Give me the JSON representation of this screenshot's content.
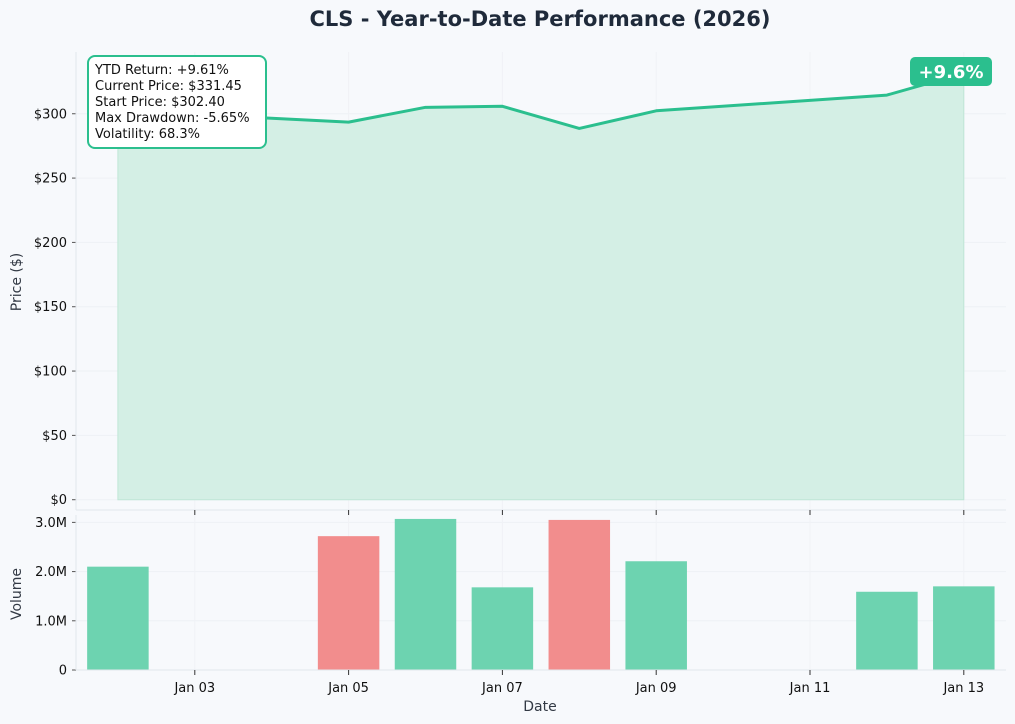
{
  "chart_data": [
    {
      "type": "area",
      "title": "CLS - Year-to-Date Performance (2026)",
      "ylabel": "Price ($)",
      "x": [
        "2026-01-02",
        "2026-01-05",
        "2026-01-06",
        "2026-01-07",
        "2026-01-08",
        "2026-01-09",
        "2026-01-12",
        "2026-01-13"
      ],
      "series": [
        {
          "values": [
            302.4,
            293.5,
            305.0,
            305.8,
            288.6,
            302.3,
            314.5,
            331.45
          ]
        }
      ],
      "ylim": [
        -8,
        348
      ],
      "yticks": [
        0,
        50,
        100,
        150,
        200,
        250,
        300
      ],
      "ytick_labels": [
        "$0",
        "$50",
        "$100",
        "$150",
        "$200",
        "$250",
        "$300"
      ],
      "grid": true,
      "line_color": "#2bbf8e",
      "fill_color": "#d4efe5",
      "stats": [
        "YTD Return: +9.61%",
        "Current Price: $331.45",
        "Start Price: $302.40",
        "Max Drawdown: -5.65%",
        "Volatility: 68.3%"
      ],
      "badge": "+9.6%",
      "badge_color": "#2bbf8e"
    },
    {
      "type": "bar",
      "ylabel": "Volume",
      "xlabel": "Date",
      "x": [
        "2026-01-02",
        "2026-01-05",
        "2026-01-06",
        "2026-01-07",
        "2026-01-08",
        "2026-01-09",
        "2026-01-12",
        "2026-01-13"
      ],
      "values": [
        2.1,
        2.72,
        3.07,
        1.68,
        3.05,
        2.21,
        1.59,
        1.7
      ],
      "direction": [
        "up",
        "down",
        "up",
        "up",
        "down",
        "up",
        "up",
        "up"
      ],
      "unit": "M",
      "ylim": [
        0,
        3.15
      ],
      "yticks": [
        0,
        1,
        2,
        3
      ],
      "ytick_labels": [
        "0",
        "1.0M",
        "2.0M",
        "3.0M"
      ],
      "up_color": "#6dd3b0",
      "down_color": "#f28d8d",
      "xticks": [
        "2026-01-03",
        "2026-01-05",
        "2026-01-07",
        "2026-01-09",
        "2026-01-11",
        "2026-01-13"
      ],
      "xtick_labels": [
        "Jan 03",
        "Jan 05",
        "Jan 07",
        "Jan 09",
        "Jan 11",
        "Jan 13"
      ]
    }
  ]
}
